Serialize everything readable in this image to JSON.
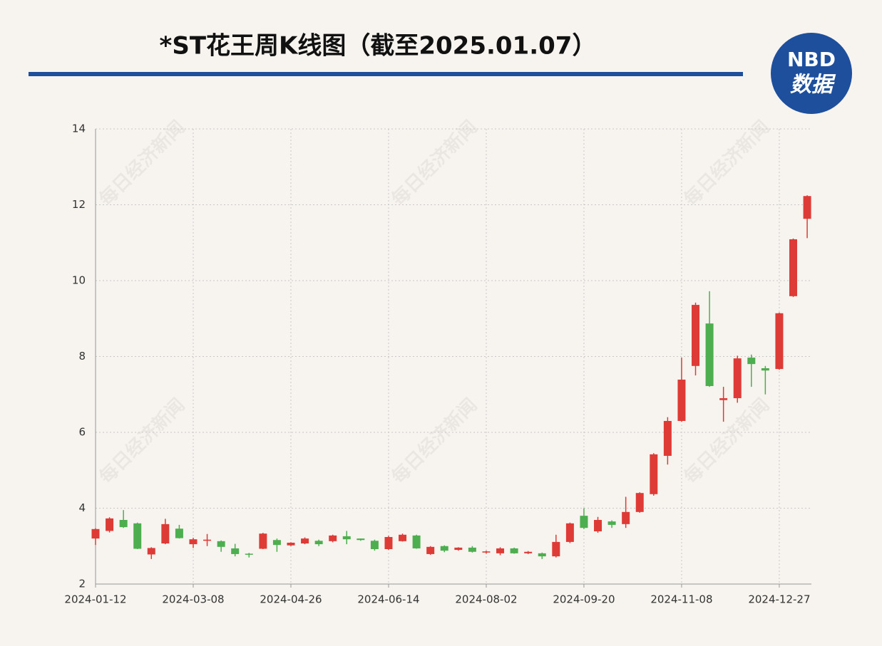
{
  "header": {
    "title": "*ST花王周K线图（截至2025.01.07）"
  },
  "logo": {
    "brand": "NBD",
    "label": "数据"
  },
  "watermark": "每日经济新闻",
  "chart_data": {
    "type": "candlestick",
    "categories": [
      "2024-01-12",
      null,
      null,
      null,
      null,
      null,
      null,
      "2024-03-08",
      null,
      null,
      null,
      null,
      null,
      null,
      "2024-04-26",
      null,
      null,
      null,
      null,
      null,
      null,
      "2024-06-14",
      null,
      null,
      null,
      null,
      null,
      null,
      "2024-08-02",
      null,
      null,
      null,
      null,
      null,
      null,
      "2024-09-20",
      null,
      null,
      null,
      null,
      null,
      null,
      "2024-11-08",
      null,
      null,
      null,
      null,
      null,
      null,
      "2024-12-27",
      null,
      null
    ],
    "open": [
      3.2,
      3.4,
      3.69,
      3.6,
      2.78,
      3.07,
      3.46,
      3.05,
      3.14,
      3.13,
      2.94,
      2.8,
      2.93,
      3.16,
      3.02,
      3.07,
      3.14,
      3.13,
      3.26,
      3.2,
      3.14,
      2.92,
      3.13,
      3.28,
      2.79,
      3.0,
      2.9,
      2.96,
      2.83,
      2.81,
      2.94,
      2.81,
      2.81,
      2.73,
      3.11,
      3.8,
      3.39,
      3.65,
      3.58,
      3.9,
      4.37,
      5.38,
      6.3,
      7.75,
      8.87,
      6.85,
      6.9,
      7.97,
      7.69,
      7.67,
      9.59,
      11.63
    ],
    "high": [
      3.47,
      3.76,
      3.95,
      3.62,
      2.97,
      3.72,
      3.56,
      3.22,
      3.32,
      3.15,
      3.06,
      2.82,
      3.35,
      3.2,
      3.1,
      3.23,
      3.17,
      3.3,
      3.4,
      3.2,
      3.17,
      3.27,
      3.33,
      3.3,
      3.0,
      3.02,
      2.97,
      3.0,
      2.88,
      2.97,
      2.96,
      2.87,
      2.83,
      3.3,
      3.62,
      4.0,
      3.77,
      3.68,
      4.3,
      4.42,
      5.45,
      6.4,
      7.97,
      9.42,
      9.72,
      7.2,
      8.02,
      8.05,
      7.75,
      9.16,
      11.11,
      12.25
    ],
    "low": [
      3.03,
      3.36,
      3.48,
      2.92,
      2.66,
      3.05,
      3.2,
      2.95,
      3.0,
      2.85,
      2.73,
      2.7,
      2.92,
      2.85,
      3.0,
      3.05,
      3.0,
      3.1,
      3.05,
      3.14,
      2.88,
      2.9,
      3.12,
      2.93,
      2.77,
      2.84,
      2.88,
      2.83,
      2.8,
      2.76,
      2.8,
      2.79,
      2.66,
      2.7,
      3.08,
      3.45,
      3.35,
      3.48,
      3.48,
      3.88,
      4.33,
      5.15,
      6.28,
      7.5,
      7.2,
      6.28,
      6.78,
      7.2,
      7.0,
      7.65,
      9.57,
      11.12
    ],
    "close": [
      3.45,
      3.73,
      3.5,
      2.93,
      2.95,
      3.58,
      3.21,
      3.18,
      3.17,
      2.98,
      2.79,
      2.78,
      3.33,
      3.03,
      3.09,
      3.2,
      3.05,
      3.28,
      3.18,
      3.16,
      2.92,
      3.24,
      3.3,
      2.94,
      2.98,
      2.88,
      2.96,
      2.85,
      2.86,
      2.94,
      2.81,
      2.85,
      2.73,
      3.11,
      3.6,
      3.48,
      3.69,
      3.56,
      3.9,
      4.4,
      5.42,
      6.3,
      7.39,
      9.36,
      7.22,
      6.9,
      7.95,
      7.8,
      7.63,
      9.14,
      11.09,
      12.23
    ],
    "up_color": "#de3b36",
    "down_color": "#4cae4f",
    "ylim": [
      2,
      14
    ],
    "yticks": [
      2,
      4,
      6,
      8,
      10,
      12,
      14
    ],
    "grid": true
  }
}
